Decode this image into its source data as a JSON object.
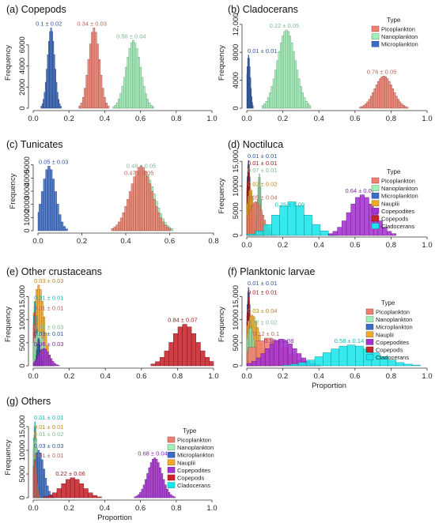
{
  "colors": {
    "Picoplankton": "#f07f6f",
    "Nanoplankton": "#9fefb6",
    "Microplankton": "#3d6cc4",
    "Nauplii": "#f2a92a",
    "Copepodites": "#a631d1",
    "Copepods": "#c8232b",
    "Cladocerans": "#19e6ea"
  },
  "chart_data": [
    {
      "id": "a",
      "type": "histogram",
      "title": "(a) Copepods",
      "ylabel": "Frequency",
      "xlabel": "",
      "xlim": [
        0,
        1
      ],
      "ylim": [
        0,
        8600
      ],
      "xticks": [
        0.0,
        0.2,
        0.4,
        0.6,
        0.8,
        1.0
      ],
      "xtick_labels": [
        "0.0",
        "0.2",
        "0.4",
        "0.6",
        "0.8",
        "1.0"
      ],
      "yticks": [
        0,
        2000,
        4000,
        6000
      ],
      "ytick_labels": [
        "0",
        "2000",
        "4000",
        "6000"
      ],
      "legend": null,
      "series": [
        {
          "name": "Microplankton",
          "mean": 0.1,
          "sd": 0.02,
          "peak": 7600,
          "label": "0.1 ± 0.02"
        },
        {
          "name": "Picoplankton",
          "mean": 0.34,
          "sd": 0.03,
          "peak": 7600,
          "label": "0.34 ± 0.03"
        },
        {
          "name": "Nanoplankton",
          "mean": 0.56,
          "sd": 0.04,
          "peak": 6400,
          "label": "0.56 ± 0.04"
        }
      ]
    },
    {
      "id": "b",
      "type": "histogram",
      "title": "(b) Cladocerans",
      "ylabel": "Frequency",
      "xlabel": "",
      "xlim": [
        0,
        1
      ],
      "ylim": [
        0,
        13000
      ],
      "xticks": [
        0.0,
        0.2,
        0.4,
        0.6,
        0.8,
        1.0
      ],
      "xtick_labels": [
        "0.0",
        "0.2",
        "0.4",
        "0.6",
        "0.8",
        "1.0"
      ],
      "yticks": [
        0,
        4000,
        8000,
        12000
      ],
      "ytick_labels": [
        "0",
        "4000",
        "8000",
        "12,000"
      ],
      "legend": {
        "title": "Type",
        "items": [
          "Picoplankton",
          "Nanoplankton",
          "Microplankton"
        ]
      },
      "series": [
        {
          "name": "Microplankton",
          "mean": 0.01,
          "sd": 0.01,
          "peak": 7600,
          "label": "0.01 ± 0.01"
        },
        {
          "name": "Nanoplankton",
          "mean": 0.22,
          "sd": 0.05,
          "peak": 11200,
          "label": "0.22 ± 0.05"
        },
        {
          "name": "Picoplankton",
          "mean": 0.76,
          "sd": 0.05,
          "peak": 4600,
          "label": "0.76 ± 0.05"
        }
      ]
    },
    {
      "id": "c",
      "type": "histogram",
      "title": "(c) Tunicates",
      "ylabel": "Frequency",
      "xlabel": "",
      "xlim": [
        0,
        0.8
      ],
      "ylim": [
        0,
        6000
      ],
      "xticks": [
        0.0,
        0.2,
        0.4,
        0.6,
        0.8
      ],
      "xtick_labels": [
        "0.0",
        "0.2",
        "0.4",
        "0.6",
        "0.8"
      ],
      "yticks": [
        0,
        1000,
        2000,
        3000,
        4000,
        5000
      ],
      "ytick_labels": [
        "0",
        "1000",
        "2000",
        "3000",
        "4000",
        "5000"
      ],
      "legend": null,
      "series": [
        {
          "name": "Microplankton",
          "mean": 0.05,
          "sd": 0.03,
          "peak": 4900,
          "label": "0.05 ± 0.03"
        },
        {
          "name": "Nanoplankton",
          "mean": 0.48,
          "sd": 0.05,
          "peak": 4600,
          "label": "0.48 ± 0.05"
        },
        {
          "name": "Picoplankton",
          "mean": 0.47,
          "sd": 0.05,
          "peak": 4900,
          "label": "0.47 ± 0.05"
        }
      ]
    },
    {
      "id": "d",
      "type": "histogram",
      "title": "(d) Noctiluca",
      "ylabel": "Frequency",
      "xlabel": "",
      "xlim": [
        0,
        1
      ],
      "ylim": [
        0,
        16000
      ],
      "xticks": [
        0.0,
        0.2,
        0.4,
        0.6,
        0.8,
        1.0
      ],
      "xtick_labels": [
        "0.0",
        "0.2",
        "0.4",
        "0.6",
        "0.8",
        "1.0"
      ],
      "yticks": [
        0,
        5000,
        10000,
        15000
      ],
      "ytick_labels": [
        "0",
        "5000",
        "10000",
        "15,000"
      ],
      "legend": {
        "title": "Type",
        "items": [
          "Picoplankton",
          "Nanoplankton",
          "Microplankton",
          "Nauplii",
          "Copepodites",
          "Copepods",
          "Cladocerans"
        ]
      },
      "series": [
        {
          "name": "Microplankton",
          "mean": 0.01,
          "sd": 0.01,
          "peak": 15200,
          "label": "0.01 ± 0.01"
        },
        {
          "name": "Copepods",
          "mean": 0.01,
          "sd": 0.01,
          "peak": 13800,
          "label": "0.01 ± 0.01"
        },
        {
          "name": "Nanoplankton",
          "mean": 0.07,
          "sd": 0.01,
          "peak": 12500,
          "label": "0.07 ± 0.01"
        },
        {
          "name": "Nauplii",
          "mean": 0.02,
          "sd": 0.02,
          "peak": 9500,
          "label": "0.02 ± 0.02"
        },
        {
          "name": "Picoplankton",
          "mean": 0.05,
          "sd": 0.04,
          "peak": 6800,
          "label": "0.05 ± 0.04"
        },
        {
          "name": "Cladocerans",
          "mean": 0.25,
          "sd": 0.09,
          "peak": 6800,
          "label": "0.25 ± 0.09"
        },
        {
          "name": "Copepodites",
          "mean": 0.64,
          "sd": 0.07,
          "peak": 8200,
          "label": "0.64 ± 0.07"
        }
      ]
    },
    {
      "id": "e",
      "type": "histogram",
      "title": "(e) Other crustaceans",
      "ylabel": "Frequency",
      "xlabel": "",
      "xlim": [
        0,
        1
      ],
      "ylim": [
        0,
        18000
      ],
      "xticks": [
        0.0,
        0.2,
        0.4,
        0.6,
        0.8,
        1.0
      ],
      "xtick_labels": [
        "0.0",
        "0.2",
        "0.4",
        "0.6",
        "0.8",
        "1.0"
      ],
      "yticks": [
        0,
        5000,
        10000,
        15000
      ],
      "ytick_labels": [
        "0",
        "5000",
        "10000",
        "15,000"
      ],
      "legend": null,
      "series": [
        {
          "name": "Nauplii",
          "mean": 0.03,
          "sd": 0.03,
          "peak": 17500,
          "label": "0.03 ± 0.03"
        },
        {
          "name": "Cladocerans",
          "mean": 0.01,
          "sd": 0.01,
          "peak": 13800,
          "label": "0.01 ± 0.01"
        },
        {
          "name": "Picoplankton",
          "mean": 0.01,
          "sd": 0.01,
          "peak": 11600,
          "label": "0.01 ± 0.01"
        },
        {
          "name": "Nanoplankton",
          "mean": 0.03,
          "sd": 0.03,
          "peak": 7500,
          "label": "0.03 ± 0.03"
        },
        {
          "name": "Microplankton",
          "mean": 0.03,
          "sd": 0.01,
          "peak": 6000,
          "label": "0.03 ± 0.01"
        },
        {
          "name": "Copepodites",
          "mean": 0.06,
          "sd": 0.03,
          "peak": 3800,
          "label": "0.06 ± 0.03"
        },
        {
          "name": "Copepods",
          "mean": 0.84,
          "sd": 0.07,
          "peak": 9000,
          "label": "0.84 ± 0.07"
        }
      ]
    },
    {
      "id": "f",
      "type": "histogram",
      "title": "(f) Planktonic larvae",
      "ylabel": "Frequency",
      "xlabel": "Proportion",
      "xlim": [
        0,
        1
      ],
      "ylim": [
        0,
        18000
      ],
      "xticks": [
        0.0,
        0.2,
        0.4,
        0.6,
        0.8,
        1.0
      ],
      "xtick_labels": [
        "0.0",
        "0.2",
        "0.4",
        "0.6",
        "0.8",
        "1.0"
      ],
      "yticks": [
        0,
        5000,
        10000,
        15000
      ],
      "ytick_labels": [
        "0",
        "5000",
        "10000",
        "15,000"
      ],
      "legend": {
        "title": "Type",
        "items": [
          "Picoplankton",
          "Nanoplankton",
          "Microplankton",
          "Nauplii",
          "Copepodites",
          "Copepods",
          "Cladocerans"
        ]
      },
      "series": [
        {
          "name": "Microplankton",
          "mean": 0.01,
          "sd": 0.01,
          "peak": 17000,
          "label": "0.01 ± 0.01"
        },
        {
          "name": "Copepods",
          "mean": 0.01,
          "sd": 0.01,
          "peak": 15000,
          "label": "0.01 ± 0.01"
        },
        {
          "name": "Nauplii",
          "mean": 0.03,
          "sd": 0.04,
          "peak": 11000,
          "label": "0.03 ± 0.04"
        },
        {
          "name": "Nanoplankton",
          "mean": 0.02,
          "sd": 0.02,
          "peak": 8500,
          "label": "0.02 ± 0.02"
        },
        {
          "name": "Picoplankton",
          "mean": 0.12,
          "sd": 0.1,
          "peak": 6000,
          "label": "0.12 ± 0.1"
        },
        {
          "name": "Copepodites",
          "mean": 0.19,
          "sd": 0.08,
          "peak": 5800,
          "label": "0.19 ± 0.08"
        },
        {
          "name": "Cladocerans",
          "mean": 0.58,
          "sd": 0.14,
          "peak": 4500,
          "label": "0.58 ± 0.14"
        }
      ]
    },
    {
      "id": "g",
      "type": "histogram",
      "title": "(g) Others",
      "ylabel": "Frequency",
      "xlabel": "Proportion",
      "xlim": [
        0,
        1
      ],
      "ylim": [
        0,
        17000
      ],
      "xticks": [
        0.0,
        0.2,
        0.4,
        0.6,
        0.8,
        1.0
      ],
      "xtick_labels": [
        "0.0",
        "0.2",
        "0.4",
        "0.6",
        "0.8",
        "1.0"
      ],
      "yticks": [
        0,
        5000,
        10000,
        15000
      ],
      "ytick_labels": [
        "0",
        "5000",
        "10000",
        "15,000"
      ],
      "legend": {
        "title": "Type",
        "items": [
          "Picoplankton",
          "Nanoplankton",
          "Microplankton",
          "Nauplii",
          "Copepodites",
          "Copepods",
          "Cladocerans"
        ]
      },
      "series": [
        {
          "name": "Cladocerans",
          "mean": 0.01,
          "sd": 0.01,
          "peak": 16000,
          "label": "0.01 ± 0.01"
        },
        {
          "name": "Nauplii",
          "mean": 0.01,
          "sd": 0.01,
          "peak": 14000,
          "label": "0.01 ± 0.01"
        },
        {
          "name": "Nanoplankton",
          "mean": 0.01,
          "sd": 0.02,
          "peak": 12500,
          "label": "0.01 ± 0.02"
        },
        {
          "name": "Microplankton",
          "mean": 0.03,
          "sd": 0.03,
          "peak": 10000,
          "label": "0.03 ± 0.03"
        },
        {
          "name": "Picoplankton",
          "mean": 0.01,
          "sd": 0.01,
          "peak": 8000,
          "label": "0.01 ± 0.01"
        },
        {
          "name": "Copepods",
          "mean": 0.22,
          "sd": 0.06,
          "peak": 4200,
          "label": "0.22 ± 0.06"
        },
        {
          "name": "Copepodites",
          "mean": 0.68,
          "sd": 0.04,
          "peak": 8400,
          "label": "0.68 ± 0.04"
        }
      ]
    }
  ]
}
